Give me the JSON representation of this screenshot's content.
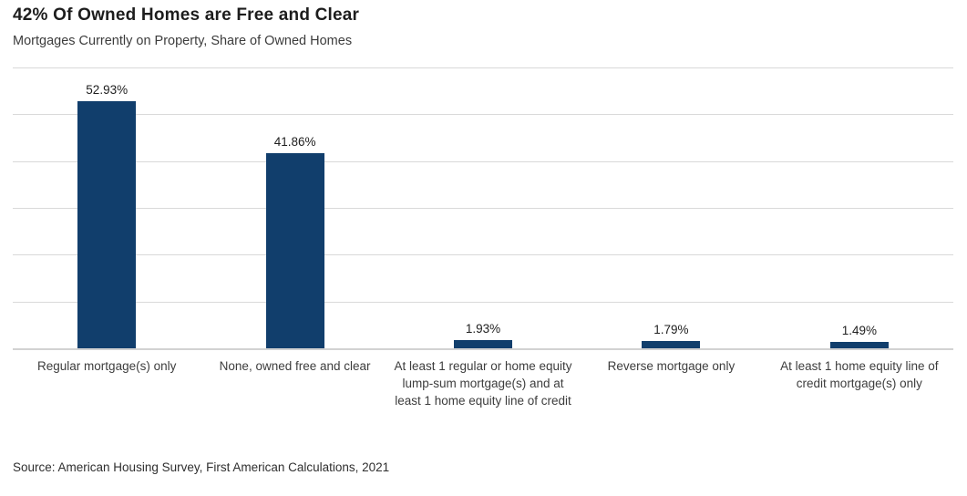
{
  "chart_data": {
    "type": "bar",
    "title": "42% Of Owned Homes are Free and Clear",
    "subtitle": "Mortgages Currently on Property, Share of Owned Homes",
    "categories": [
      "Regular mortgage(s) only",
      "None, owned free and clear",
      "At least 1 regular or home equity lump-sum mortgage(s) and at least 1 home equity line of credit",
      "Reverse mortgage only",
      "At least 1 home equity line of credit mortgage(s) only"
    ],
    "values": [
      52.93,
      41.86,
      1.93,
      1.79,
      1.49
    ],
    "value_labels": [
      "52.93%",
      "41.86%",
      "1.93%",
      "1.79%",
      "1.49%"
    ],
    "xlabel": "",
    "ylabel": "",
    "ylim": [
      0,
      60
    ],
    "grid_step": 10,
    "grid": true,
    "legend_position": "none",
    "bar_color": "#113e6c",
    "gridline_color": "#d9d9d9"
  },
  "footer": {
    "source": "Source: American Housing Survey, First American Calculations, 2021"
  }
}
